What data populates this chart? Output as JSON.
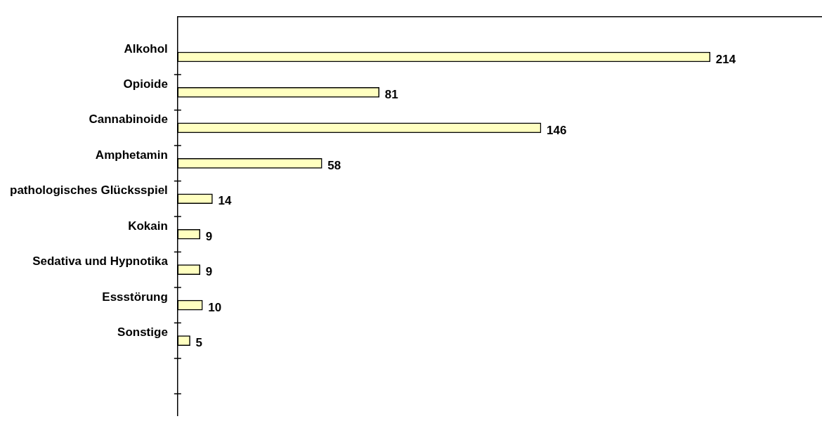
{
  "chart_data": {
    "type": "bar",
    "orientation": "horizontal",
    "categories": [
      "Alkohol",
      "Opioide",
      "Cannabinoide",
      "Amphetamin",
      "pathologisches Glücksspiel",
      "Kokain",
      "Sedativa und Hypnotika",
      "Essstörung",
      "Sonstige"
    ],
    "values": [
      214,
      81,
      146,
      58,
      14,
      9,
      9,
      10,
      5
    ],
    "color": "#ffffc0",
    "data_labels": true,
    "grid": false,
    "legend": false
  }
}
